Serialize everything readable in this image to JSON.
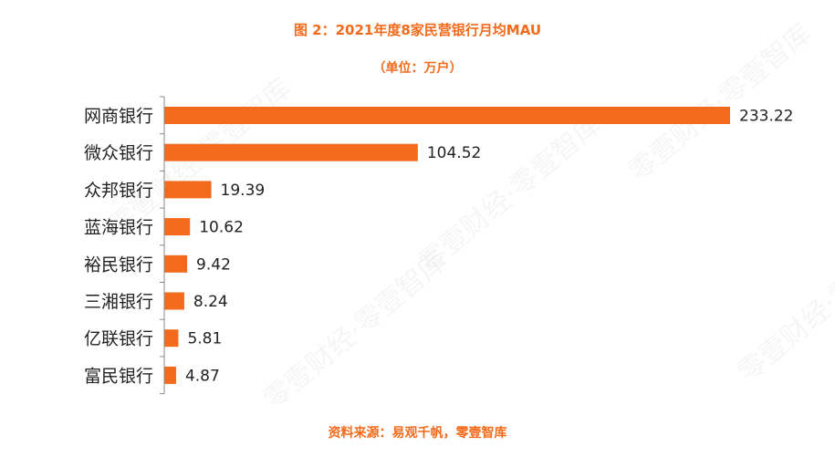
{
  "title": "图 2：2021年度8家民营银行月均MAU",
  "subtitle": "（单位：万户）",
  "source": "资料来源：易观千帆，零壹智库",
  "watermark": "零壹财经·零壹智库",
  "colors": {
    "bar": "#f26b1d",
    "accent": "#f26b1d",
    "axis": "#888888"
  },
  "chart_data": {
    "type": "bar",
    "orientation": "horizontal",
    "title": "图 2：2021年度8家民营银行月均MAU",
    "subtitle": "（单位：万户）",
    "categories": [
      "网商银行",
      "微众银行",
      "众邦银行",
      "蓝海银行",
      "裕民银行",
      "三湘银行",
      "亿联银行",
      "富民银行"
    ],
    "values": [
      233.22,
      104.52,
      19.39,
      10.62,
      9.42,
      8.24,
      5.81,
      4.87
    ],
    "value_labels": [
      "233.22",
      "104.52",
      "19.39",
      "10.62",
      "9.42",
      "8.24",
      "5.81",
      "4.87"
    ],
    "xlim": [
      0,
      233.22
    ],
    "grid": false,
    "legend": "none"
  }
}
